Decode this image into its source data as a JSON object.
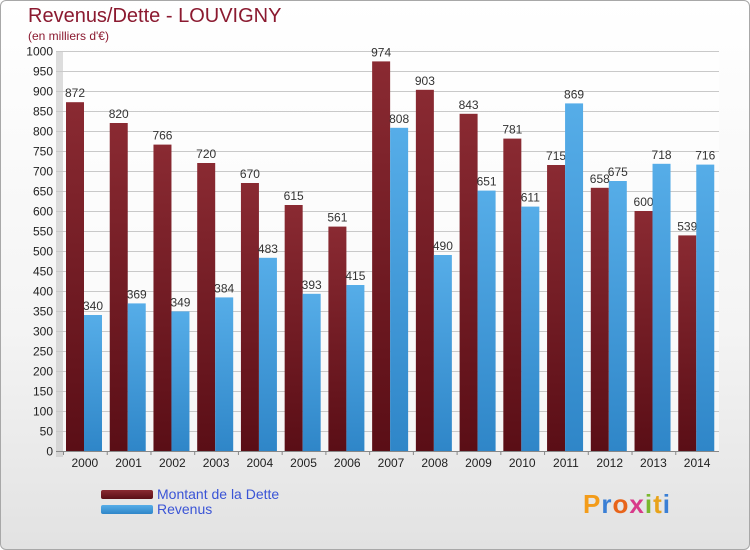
{
  "header": {
    "title": "Revenus/Dette - LOUVIGNY",
    "subtitle": "(en milliers d'€)"
  },
  "legend": {
    "debt_label": "Montant de la Dette",
    "revenue_label": "Revenus"
  },
  "logo": {
    "letters": [
      "P",
      "r",
      "o",
      "x",
      "i",
      "t",
      "i"
    ],
    "colors": [
      "#f39c1a",
      "#3a7fd5",
      "#e8641a",
      "#d83a8a",
      "#7ab82e",
      "#e8a31a",
      "#3a7fd5"
    ]
  },
  "colors": {
    "debt": "#7a1f28",
    "revenue": "#4aa2e0"
  },
  "chart_data": {
    "type": "bar",
    "title": "Revenus/Dette - LOUVIGNY",
    "subtitle": "(en milliers d'€)",
    "categories": [
      "2000",
      "2001",
      "2002",
      "2003",
      "2004",
      "2005",
      "2006",
      "2007",
      "2008",
      "2009",
      "2010",
      "2011",
      "2012",
      "2013",
      "2014"
    ],
    "series": [
      {
        "name": "Montant de la Dette",
        "values": [
          872,
          820,
          766,
          720,
          670,
          615,
          561,
          974,
          903,
          843,
          781,
          715,
          658,
          600,
          539
        ]
      },
      {
        "name": "Revenus",
        "values": [
          340,
          369,
          349,
          384,
          483,
          393,
          415,
          808,
          490,
          651,
          611,
          869,
          675,
          718,
          716
        ]
      }
    ],
    "ylim": [
      0,
      1000
    ],
    "ytick_step": 50,
    "grid": true,
    "legend_position": "bottom-left"
  }
}
